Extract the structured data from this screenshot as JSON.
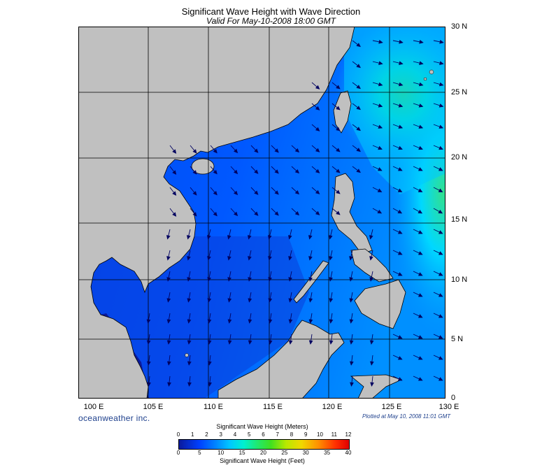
{
  "header": {
    "title": "Significant Wave Height with Wave Direction",
    "subtitle": "Valid For May-10-2008 18:00 GMT"
  },
  "axes": {
    "lat_labels": [
      "30 N",
      "25 N",
      "20 N",
      "15 N",
      "10 N",
      "5 N",
      "0"
    ],
    "lon_labels": [
      "100 E",
      "105 E",
      "110 E",
      "115 E",
      "120 E",
      "125 E",
      "130 E"
    ]
  },
  "footer": {
    "brand": "oceanweather inc.",
    "plotted": "Plotted at May 10, 2008 11:01 GMT"
  },
  "colorbar": {
    "title_meters": "Significant Wave Height (Meters)",
    "title_feet": "Significant Wave Height (Feet)",
    "meter_ticks": [
      "0",
      "1",
      "2",
      "3",
      "4",
      "5",
      "6",
      "7",
      "8",
      "9",
      "10",
      "11",
      "12"
    ],
    "feet_ticks": [
      "0",
      "5",
      "10",
      "15",
      "20",
      "25",
      "30",
      "35",
      "40"
    ]
  },
  "colors": {
    "land": "#c0c0c0",
    "deep_blue": "#0a1a9c",
    "mid_blue": "#0050ff",
    "cyan": "#00e0ff",
    "green": "#20d080",
    "arrow": "#000060"
  }
}
